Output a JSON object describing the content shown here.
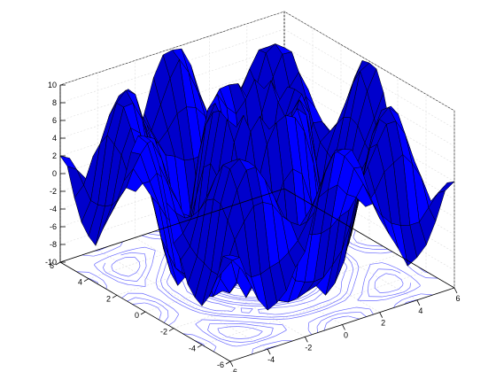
{
  "chart_data": {
    "type": "surface",
    "title": "",
    "xlabel": "",
    "ylabel": "",
    "zlabel": "",
    "x_ticks": [
      -6,
      -4,
      -2,
      0,
      2,
      4,
      6
    ],
    "y_ticks": [
      -6,
      -4,
      -2,
      0,
      2,
      4,
      6
    ],
    "z_ticks": [
      -10,
      -8,
      -6,
      -4,
      -2,
      0,
      2,
      4,
      6,
      8,
      10
    ],
    "x_tick_labels": [
      "-6",
      "-4",
      "-2",
      "0",
      "2",
      "4",
      "6"
    ],
    "y_tick_labels": [
      "-6",
      "-4",
      "-2",
      "0",
      "2",
      "4",
      "6"
    ],
    "z_tick_labels": [
      "-10",
      "-8",
      "-6",
      "-4",
      "-2",
      "0",
      "2",
      "4",
      "6",
      "8",
      "10"
    ],
    "xlim": [
      -6,
      6
    ],
    "ylim": [
      -6,
      6
    ],
    "zlim": [
      -10,
      10
    ],
    "grid": true,
    "contour_projection": true,
    "grid_size": [
      25,
      25
    ],
    "surface_z": [
      [
        2.0,
        1.4,
        -1.7,
        -4.1,
        -5.6,
        -5.1,
        -4.1,
        -1.8,
        -0.4,
        3.7,
        7.4,
        9.6,
        9.8,
        9.4,
        7.1,
        3.4,
        0.6,
        -1.5,
        -3.5,
        -5.8,
        -5.2,
        -4.1,
        -1.8,
        1.3,
        2.0
      ],
      [
        1.4,
        0.6,
        -0.8,
        -2.0,
        -2.0,
        -1.6,
        -1.3,
        -0.6,
        0.4,
        2.2,
        4.8,
        7.4,
        9.2,
        8.2,
        6.5,
        4.4,
        1.8,
        0.1,
        -1.1,
        -1.7,
        -2.0,
        -2.0,
        -0.7,
        0.6,
        1.4
      ],
      [
        -1.7,
        -0.8,
        2.1,
        3.8,
        5.2,
        5.3,
        4.7,
        3.1,
        2.0,
        1.3,
        2.6,
        3.8,
        4.3,
        4.5,
        3.1,
        2.4,
        1.0,
        2.3,
        4.2,
        4.9,
        5.5,
        4.1,
        2.2,
        -0.8,
        -1.7
      ],
      [
        -4.1,
        -2.0,
        3.8,
        6.9,
        8.8,
        8.8,
        7.0,
        4.7,
        2.2,
        0.5,
        -0.2,
        -0.9,
        -1.1,
        -0.8,
        0.1,
        0.5,
        2.7,
        4.7,
        6.9,
        8.8,
        8.8,
        7.0,
        3.6,
        -2.0,
        -4.1
      ],
      [
        -5.6,
        -2.0,
        5.2,
        8.8,
        9.6,
        8.9,
        5.6,
        2.4,
        -1.4,
        -4.3,
        -6.2,
        -6.7,
        -7.0,
        -6.9,
        -5.8,
        -4.5,
        -1.6,
        1.9,
        6.0,
        8.9,
        9.9,
        8.8,
        5.0,
        -2.0,
        -5.6
      ],
      [
        -5.1,
        -1.6,
        5.3,
        8.8,
        8.9,
        6.7,
        2.7,
        -2.1,
        -6.1,
        -8.6,
        -9.1,
        -9.0,
        -8.6,
        -8.3,
        -9.7,
        -8.7,
        -6.5,
        -2.1,
        2.4,
        6.7,
        9.1,
        9.2,
        5.2,
        -1.6,
        -5.1
      ],
      [
        -4.1,
        -1.3,
        4.7,
        7.0,
        5.6,
        2.7,
        -1.7,
        -6.3,
        -8.1,
        -8.3,
        -6.8,
        -4.9,
        -4.1,
        -5.1,
        -6.7,
        -8.3,
        -8.6,
        -6.2,
        -2.1,
        2.7,
        5.4,
        6.8,
        4.7,
        -1.3,
        -4.1
      ],
      [
        -1.8,
        -0.6,
        3.1,
        4.7,
        2.4,
        -2.1,
        -6.3,
        -8.5,
        -7.1,
        -3.7,
        0.3,
        3.2,
        4.3,
        3.4,
        -0.2,
        -4.1,
        -7.2,
        -8.1,
        -6.2,
        -2.1,
        2.4,
        4.5,
        3.3,
        -0.6,
        -1.8
      ],
      [
        -0.4,
        0.4,
        2.0,
        2.2,
        -1.4,
        -6.1,
        -8.1,
        -7.1,
        -2.8,
        3.1,
        7.3,
        9.4,
        9.9,
        9.3,
        7.4,
        3.4,
        -2.5,
        -7.5,
        -8.2,
        -6.1,
        -1.7,
        2.3,
        1.9,
        0.4,
        -0.4
      ],
      [
        3.7,
        2.2,
        1.3,
        0.5,
        -4.3,
        -8.6,
        -8.3,
        -3.7,
        3.1,
        8.6,
        10.0,
        8.2,
        6.6,
        8.1,
        9.5,
        8.4,
        2.9,
        -3.4,
        -7.9,
        -8.6,
        -4.2,
        0.4,
        1.3,
        2.2,
        3.7
      ],
      [
        7.4,
        4.8,
        2.6,
        -0.2,
        -6.2,
        -9.1,
        -6.8,
        0.3,
        7.3,
        10.0,
        6.7,
        1.2,
        -1.6,
        1.1,
        6.6,
        9.7,
        7.9,
        0.4,
        -6.5,
        -9.4,
        -6.1,
        -0.1,
        2.4,
        4.8,
        7.4
      ],
      [
        9.6,
        7.4,
        3.8,
        -0.9,
        -6.7,
        -9.0,
        -4.9,
        3.2,
        9.4,
        8.2,
        1.2,
        -6.9,
        -9.5,
        -7.1,
        1.4,
        7.9,
        9.5,
        3.7,
        -5.0,
        -9.0,
        -6.8,
        -0.9,
        3.9,
        7.4,
        9.6
      ],
      [
        9.8,
        9.2,
        4.3,
        -1.1,
        -7.0,
        -8.6,
        -4.1,
        4.3,
        9.9,
        6.6,
        -1.6,
        -9.5,
        -10.0,
        -9.4,
        -1.6,
        6.8,
        9.6,
        4.1,
        -4.2,
        -8.2,
        -6.6,
        -1.1,
        4.3,
        9.2,
        9.8
      ],
      [
        9.4,
        8.2,
        4.5,
        -0.8,
        -6.9,
        -8.3,
        -5.1,
        3.4,
        9.3,
        8.1,
        1.1,
        -7.1,
        -9.4,
        -6.9,
        1.2,
        8.0,
        9.4,
        3.2,
        -5.0,
        -9.0,
        -6.6,
        -0.9,
        3.9,
        7.4,
        9.6
      ],
      [
        7.1,
        6.5,
        3.1,
        0.1,
        -5.8,
        -9.7,
        -6.7,
        -0.2,
        7.4,
        9.5,
        6.6,
        1.4,
        -1.6,
        1.2,
        6.7,
        10.0,
        7.3,
        0.3,
        -6.8,
        -9.1,
        -6.2,
        -0.2,
        2.6,
        4.8,
        7.4
      ],
      [
        3.4,
        4.4,
        2.4,
        0.5,
        -4.5,
        -8.7,
        -8.3,
        -4.1,
        3.4,
        8.4,
        9.7,
        7.9,
        6.8,
        8.0,
        10.0,
        8.6,
        3.1,
        -3.7,
        -8.3,
        -8.6,
        -4.3,
        0.5,
        1.3,
        2.2,
        3.7
      ],
      [
        0.6,
        1.8,
        1.0,
        2.7,
        -1.6,
        -6.5,
        -8.6,
        -7.2,
        -2.5,
        2.9,
        7.9,
        9.5,
        9.6,
        9.4,
        7.3,
        3.1,
        -2.8,
        -7.1,
        -8.1,
        -6.1,
        -1.4,
        2.2,
        2.0,
        0.4,
        -0.4
      ],
      [
        -1.5,
        0.1,
        2.3,
        4.7,
        1.9,
        -2.1,
        -6.2,
        -8.1,
        -7.5,
        -3.4,
        0.4,
        3.7,
        4.1,
        3.2,
        0.3,
        -3.7,
        -7.1,
        -8.5,
        -6.3,
        -2.1,
        2.4,
        4.7,
        3.1,
        -0.6,
        -1.8
      ],
      [
        -3.5,
        -1.1,
        4.2,
        6.9,
        6.0,
        2.4,
        -2.1,
        -6.2,
        -8.2,
        -7.9,
        -6.5,
        -5.0,
        -4.2,
        -5.0,
        -6.8,
        -8.3,
        -8.1,
        -6.3,
        -1.7,
        2.7,
        5.6,
        7.0,
        4.7,
        -1.3,
        -4.1
      ],
      [
        -5.8,
        -1.7,
        4.9,
        8.8,
        8.9,
        6.7,
        2.7,
        -2.1,
        -6.1,
        -8.6,
        -9.4,
        -9.0,
        -8.2,
        -9.0,
        -9.1,
        -8.6,
        -6.1,
        -2.1,
        2.7,
        6.7,
        8.9,
        8.8,
        5.3,
        -1.6,
        -5.1
      ],
      [
        -5.2,
        -2.0,
        5.5,
        8.8,
        9.9,
        9.1,
        5.4,
        2.4,
        -1.7,
        -4.2,
        -6.1,
        -6.8,
        -6.6,
        -6.6,
        -6.2,
        -4.3,
        -1.4,
        2.4,
        5.6,
        8.9,
        9.6,
        8.8,
        5.2,
        -2.0,
        -5.6
      ],
      [
        -4.1,
        -2.0,
        4.1,
        7.0,
        8.8,
        9.2,
        6.8,
        4.5,
        2.3,
        0.4,
        -0.1,
        -0.9,
        -1.1,
        -0.9,
        -0.2,
        0.5,
        2.2,
        4.7,
        7.0,
        8.8,
        8.8,
        6.9,
        3.8,
        -2.0,
        -4.1
      ],
      [
        -1.8,
        -0.7,
        2.2,
        3.6,
        5.0,
        5.2,
        4.7,
        3.3,
        1.9,
        1.3,
        2.4,
        3.9,
        4.3,
        3.9,
        2.6,
        1.3,
        2.0,
        3.1,
        4.7,
        5.3,
        5.2,
        3.8,
        2.1,
        -0.8,
        -1.7
      ],
      [
        1.3,
        0.6,
        -0.8,
        -2.0,
        -2.0,
        -1.6,
        -1.3,
        -0.6,
        0.4,
        2.2,
        4.8,
        7.4,
        9.2,
        7.4,
        4.8,
        2.2,
        0.4,
        -0.6,
        -1.3,
        -1.6,
        -2.0,
        -2.0,
        -0.8,
        0.6,
        1.4
      ],
      [
        2.0,
        1.4,
        -1.7,
        -4.1,
        -5.6,
        -5.1,
        -4.1,
        -1.8,
        -0.4,
        3.7,
        7.4,
        9.6,
        9.8,
        9.6,
        7.4,
        3.7,
        -0.4,
        -1.8,
        -4.1,
        -5.1,
        -5.6,
        -4.1,
        -1.7,
        1.4,
        2.0
      ]
    ],
    "colors": {
      "surface_fill": "#0000ff",
      "surface_fill_shaded": "#0000cc",
      "mesh_line": "#000000",
      "contour_line": "#6b6bff",
      "axis_line": "#000000",
      "grid_line": "#dddddd"
    }
  }
}
